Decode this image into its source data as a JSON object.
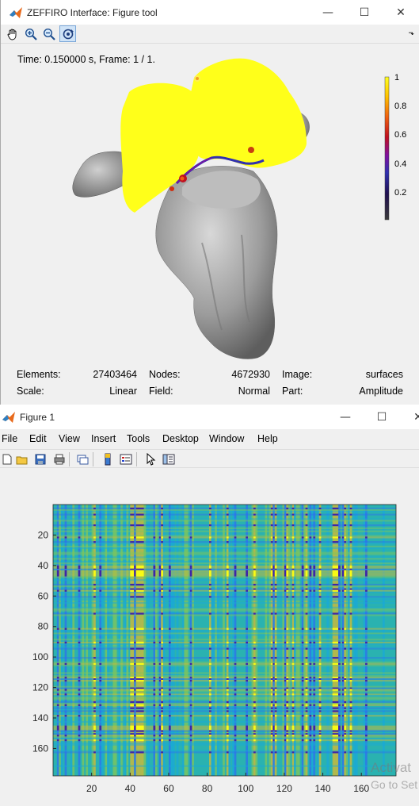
{
  "window1": {
    "title": "ZEFFIRO Interface: Figure tool",
    "controls": {
      "minimize": "—",
      "maximize": "☐",
      "close": "✕"
    },
    "toolbar": [
      "hand-pan-icon",
      "zoom-in-icon",
      "zoom-out-icon",
      "rotate-3d-icon"
    ],
    "time_label": "Time: 0.150000 s, Frame: 1 / 1.",
    "colorbar": {
      "ticks": [
        "1",
        "0.8",
        "0.6",
        "0.4",
        "0.2"
      ],
      "colormap": [
        "#3a3a3a",
        "#201050",
        "#3030b0",
        "#8010a0",
        "#c01020",
        "#f06010",
        "#ffc000",
        "#ffff20"
      ]
    },
    "info": {
      "elements_label": "Elements:",
      "elements_value": "27403464",
      "nodes_label": "Nodes:",
      "nodes_value": "4672930",
      "image_label": "Image:",
      "image_value": "surfaces",
      "scale_label": "Scale:",
      "scale_value": "Linear",
      "field_label": "Field:",
      "field_value": "Normal",
      "part_label": "Part:",
      "part_value": "Amplitude"
    },
    "accent_yellow": "#ffff1a",
    "surface_gray": "#9a9a9a"
  },
  "window2": {
    "title": "Figure 1",
    "controls": {
      "minimize": "—",
      "maximize": "☐",
      "close": "✕"
    },
    "menu": [
      "File",
      "Edit",
      "View",
      "Insert",
      "Tools",
      "Desktop",
      "Window",
      "Help"
    ],
    "toolbar": [
      "new-figure-icon",
      "open-icon",
      "save-icon",
      "print-icon",
      "link-icon",
      "colorbar-icon",
      "legend-icon",
      "pointer-icon",
      "property-editor-icon"
    ],
    "chart_data": {
      "type": "heatmap",
      "title": "",
      "xlabel": "",
      "ylabel": "",
      "xlim": [
        0,
        178
      ],
      "ylim": [
        178,
        0
      ],
      "xticks": [
        20,
        40,
        60,
        80,
        100,
        120,
        140,
        160
      ],
      "yticks": [
        20,
        40,
        60,
        80,
        100,
        120,
        140,
        160
      ],
      "colormap": [
        "#3e26a8",
        "#2d6ff0",
        "#1aa8d8",
        "#2ab2b0",
        "#81c55a",
        "#d8ba30",
        "#f9fb15"
      ]
    },
    "watermark_line1": "Activat",
    "watermark_line2": "Go to Set"
  }
}
